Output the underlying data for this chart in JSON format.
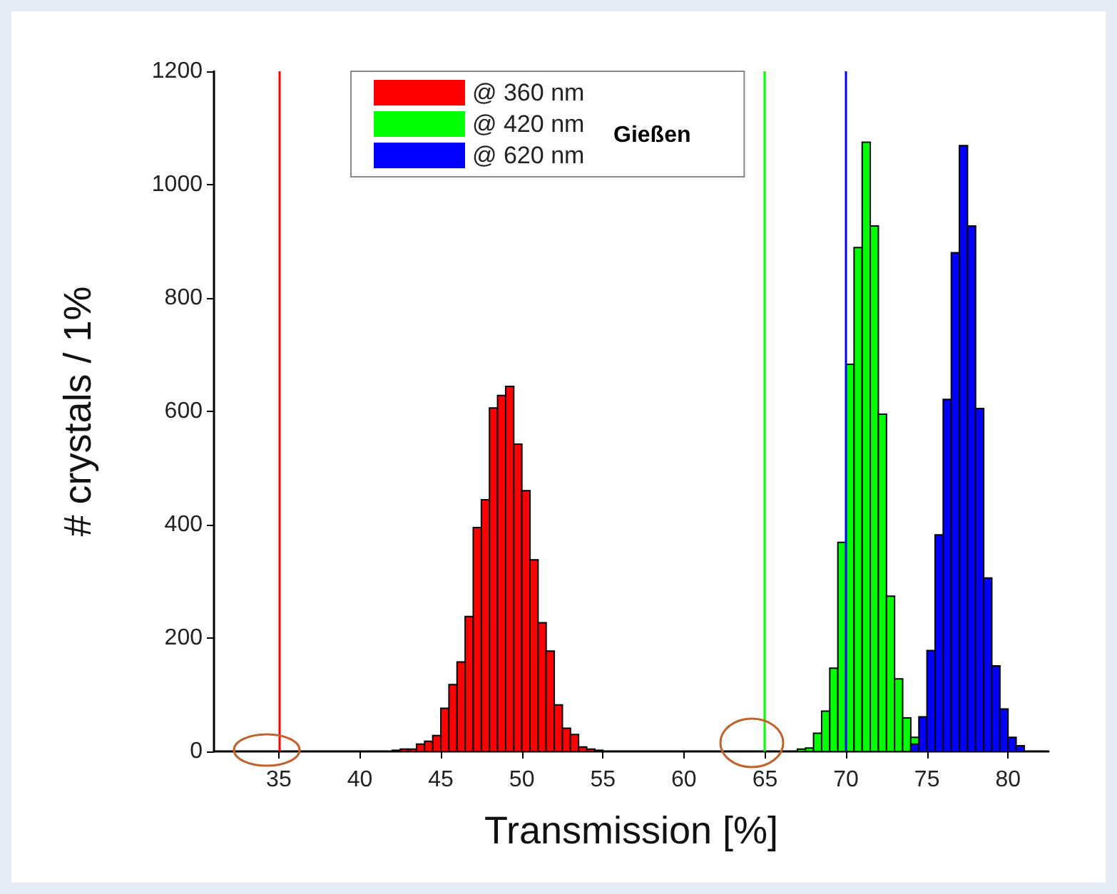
{
  "chart_data": {
    "type": "histogram",
    "xlabel": "Transmission [%]",
    "ylabel": "# crystals / 1%",
    "annotations": [
      "Gießen"
    ],
    "xlim": [
      31,
      82.5
    ],
    "xticks": [
      35,
      40,
      45,
      50,
      55,
      60,
      65,
      70,
      75,
      80
    ],
    "ylim": [
      0,
      1200
    ],
    "yticks": [
      0,
      200,
      400,
      600,
      800,
      1000,
      1200
    ],
    "grid": false,
    "legend": "top",
    "bins": [
      42,
      42.5,
      43,
      43.5,
      44,
      44.5,
      45,
      45.5,
      46,
      46.5,
      47,
      47.5,
      48,
      48.5,
      49,
      49.5,
      50,
      50.5,
      51,
      51.5,
      52,
      52.5,
      53,
      53.5,
      54,
      54.5,
      55,
      55.5,
      56,
      56.5,
      57,
      57.5,
      58,
      58.5,
      59,
      59.5,
      60,
      60.5,
      61,
      61.5,
      62,
      62.5,
      63,
      63.5,
      64,
      64.5,
      65,
      65.5,
      66,
      66.5,
      67,
      67.5,
      68,
      68.5,
      69,
      69.5,
      70,
      70.5,
      71,
      71.5,
      72,
      72.5,
      73,
      73.5,
      74,
      74.5,
      75,
      75.5,
      76,
      76.5,
      77,
      77.5,
      78,
      78.5,
      79,
      79.5,
      80,
      80.5,
      81
    ],
    "series": [
      {
        "name": "@ 360 nm",
        "color": "#ff0000",
        "values": [
          2,
          4,
          4,
          13,
          18,
          28,
          76,
          118,
          158,
          238,
          395,
          444,
          606,
          628,
          644,
          542,
          460,
          338,
          227,
          177,
          82,
          41,
          30,
          8,
          4,
          2,
          null,
          null,
          null,
          null,
          null,
          null,
          null,
          null,
          null,
          null,
          null,
          null,
          null,
          null,
          null,
          null,
          null,
          null,
          null,
          null,
          null,
          null,
          null,
          null,
          null,
          null,
          null,
          null,
          null,
          null,
          null,
          null,
          null,
          null,
          null,
          null,
          null,
          null,
          null,
          null,
          null,
          null,
          null,
          null,
          null,
          null,
          null,
          null,
          null,
          null,
          null,
          null
        ]
      },
      {
        "name": "@ 420 nm",
        "color": "#00ff00",
        "values": [
          null,
          null,
          null,
          null,
          null,
          null,
          null,
          null,
          null,
          null,
          null,
          null,
          null,
          null,
          null,
          null,
          null,
          null,
          null,
          null,
          null,
          null,
          null,
          null,
          null,
          null,
          null,
          null,
          null,
          null,
          null,
          null,
          null,
          null,
          null,
          null,
          null,
          null,
          null,
          null,
          null,
          null,
          null,
          null,
          null,
          null,
          null,
          null,
          null,
          null,
          4,
          6,
          32,
          71,
          147,
          369,
          683,
          889,
          1075,
          927,
          595,
          274,
          128,
          59,
          25,
          null,
          null,
          null,
          null,
          null,
          null,
          null,
          null,
          null,
          null,
          null,
          null,
          null
        ]
      },
      {
        "name": "@ 620 nm",
        "color": "#0000ff",
        "values": [
          null,
          null,
          null,
          null,
          null,
          null,
          null,
          null,
          null,
          null,
          null,
          null,
          null,
          null,
          null,
          null,
          null,
          null,
          null,
          null,
          null,
          null,
          null,
          null,
          null,
          null,
          null,
          null,
          null,
          null,
          null,
          null,
          null,
          null,
          null,
          null,
          null,
          null,
          null,
          null,
          null,
          null,
          null,
          null,
          null,
          null,
          null,
          null,
          null,
          null,
          null,
          null,
          null,
          null,
          null,
          null,
          null,
          null,
          null,
          null,
          null,
          null,
          null,
          null,
          13,
          61,
          178,
          382,
          621,
          880,
          1069,
          927,
          605,
          306,
          151,
          75,
          25,
          10
        ]
      }
    ],
    "ref_lines": [
      {
        "axis": "x",
        "value": 35,
        "color": "#ff0000"
      },
      {
        "axis": "x",
        "value": 65,
        "color": "#00ff00"
      },
      {
        "axis": "x",
        "value": 70,
        "color": "#0000ff"
      }
    ]
  }
}
